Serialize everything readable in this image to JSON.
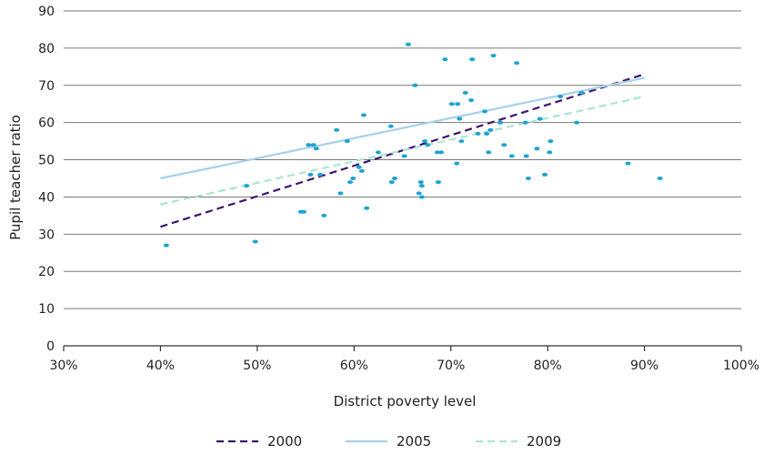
{
  "chart_data": {
    "type": "scatter",
    "title": "",
    "xlabel": "District poverty level",
    "ylabel": "Pupil teacher ratio",
    "xlim": [
      30,
      100
    ],
    "ylim": [
      0,
      90
    ],
    "x_ticks": [
      "30%",
      "40%",
      "50%",
      "60%",
      "70%",
      "80%",
      "90%",
      "100%"
    ],
    "y_ticks": [
      "0",
      "10",
      "20",
      "30",
      "40",
      "50",
      "60",
      "70",
      "80",
      "90"
    ],
    "grid": "horizontal",
    "legend_position": "bottom",
    "points": {
      "color": "#1ba3d3",
      "xy": [
        [
          40.6,
          27
        ],
        [
          49.8,
          28
        ],
        [
          48.9,
          43
        ],
        [
          54.5,
          36
        ],
        [
          54.8,
          36
        ],
        [
          55.3,
          54
        ],
        [
          55.5,
          46
        ],
        [
          55.8,
          54
        ],
        [
          56.1,
          53
        ],
        [
          56.5,
          46
        ],
        [
          56.9,
          35
        ],
        [
          58.2,
          58
        ],
        [
          58.6,
          41
        ],
        [
          59.3,
          55
        ],
        [
          59.6,
          44
        ],
        [
          59.9,
          45
        ],
        [
          60.5,
          48
        ],
        [
          60.8,
          47
        ],
        [
          61,
          62
        ],
        [
          61.3,
          37
        ],
        [
          62.5,
          52
        ],
        [
          63.8,
          59
        ],
        [
          63.9,
          44
        ],
        [
          64.2,
          45
        ],
        [
          65.2,
          51
        ],
        [
          65.6,
          81
        ],
        [
          66.3,
          70
        ],
        [
          66.7,
          41
        ],
        [
          66.9,
          44
        ],
        [
          67,
          43
        ],
        [
          67,
          40
        ],
        [
          67.3,
          55
        ],
        [
          67.6,
          54
        ],
        [
          68.6,
          52
        ],
        [
          68.7,
          44
        ],
        [
          69,
          52
        ],
        [
          69.4,
          77
        ],
        [
          70.1,
          65
        ],
        [
          70.6,
          49
        ],
        [
          70.7,
          65
        ],
        [
          70.9,
          61
        ],
        [
          71.1,
          55
        ],
        [
          71.5,
          68
        ],
        [
          72.1,
          66
        ],
        [
          72.2,
          77
        ],
        [
          72.8,
          57
        ],
        [
          73.5,
          63
        ],
        [
          73.7,
          57
        ],
        [
          73.9,
          52
        ],
        [
          74.1,
          58
        ],
        [
          74.4,
          78
        ],
        [
          75.1,
          60
        ],
        [
          75.5,
          54
        ],
        [
          76.3,
          51
        ],
        [
          76.8,
          76
        ],
        [
          77.7,
          60
        ],
        [
          77.8,
          51
        ],
        [
          78,
          45
        ],
        [
          78.9,
          53
        ],
        [
          79.2,
          61
        ],
        [
          79.7,
          46
        ],
        [
          80.2,
          52
        ],
        [
          80.3,
          55
        ],
        [
          81.3,
          67
        ],
        [
          83,
          60
        ],
        [
          83.5,
          68
        ],
        [
          88.3,
          49
        ],
        [
          91.6,
          45
        ]
      ]
    },
    "series": [
      {
        "name": "2000",
        "style": "dashed",
        "color": "#3b1470",
        "x": [
          40,
          90
        ],
        "y": [
          32,
          73
        ]
      },
      {
        "name": "2005",
        "style": "solid",
        "color": "#a6d0ea",
        "x": [
          40,
          90
        ],
        "y": [
          45,
          72
        ]
      },
      {
        "name": "2009",
        "style": "dashed",
        "color": "#a8e6d2",
        "x": [
          40,
          90
        ],
        "y": [
          38,
          67
        ]
      }
    ]
  }
}
